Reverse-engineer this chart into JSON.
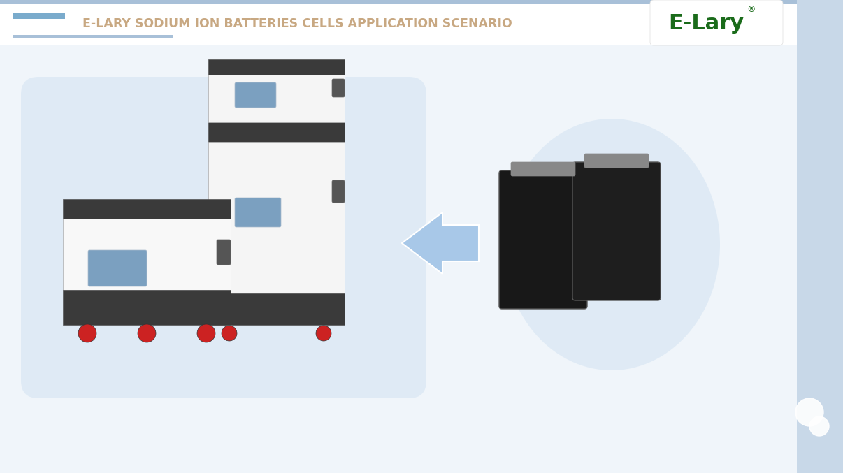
{
  "title": "E-LARY SODIUM ION BATTERIES CELLS APPLICATION SCENARIO",
  "title_color_main": "#c8a882",
  "bg_color": "#f0f5fa",
  "header_bg": "#ffffff",
  "logo_text": "E-Lary",
  "logo_color": "#1a6b1a",
  "sidebar_color": "#c8d8e8",
  "header_line_color": "#a8c0d8",
  "header_accent_color": "#7aabcc",
  "left_bubble_color": "#dce9f5",
  "right_circle_color": "#dce9f5",
  "arrow_color": "#a8c8e8",
  "dark_color": "#3a3a3a",
  "white_color": "#f5f5f5",
  "screen_color": "#7ba0c0",
  "wheel_color": "#cc2222"
}
